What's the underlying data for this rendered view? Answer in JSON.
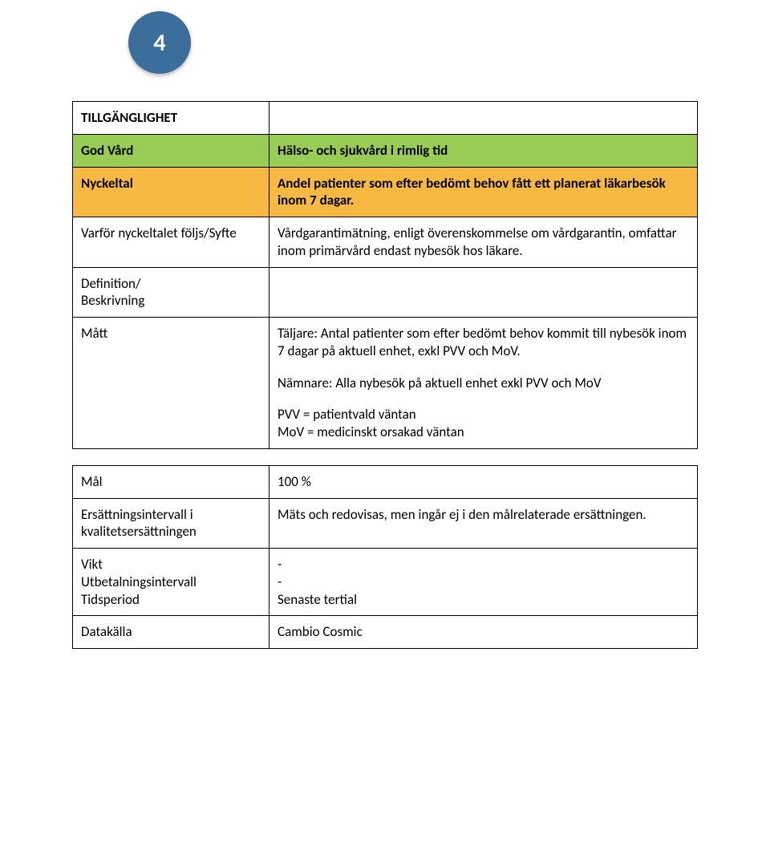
{
  "colors": {
    "badge_bg": "#3b6e9a",
    "badge_text": "#ffffff",
    "row_green": "#99cc55",
    "row_orange": "#f7b942",
    "border": "#000000",
    "page_bg": "#ffffff",
    "text": "#000000"
  },
  "badge": {
    "number": "4"
  },
  "section_title": "TILLGÄNGLIGHET",
  "rows": {
    "god_vard": {
      "label": "God Vård",
      "value": "Hälso- och sjukvård i rimlig tid"
    },
    "nyckeltal": {
      "label": "Nyckeltal",
      "value": "Andel patienter som efter bedömt behov fått ett planerat läkarbesök inom 7 dagar."
    },
    "varfor": {
      "label": "Varför nyckeltalet följs/Syfte",
      "value": "Vårdgarantimätning, enligt överenskommelse om vårdgarantin, omfattar inom primärvård endast nybesök hos läkare."
    },
    "definition": {
      "label_line1": "Definition/",
      "label_line2": "Beskrivning",
      "value": ""
    },
    "matt": {
      "label": "Mått",
      "taljare": "Täljare: Antal patienter som efter bedömt behov kommit till nybesök inom 7 dagar på aktuell enhet, exkl PVV och MoV.",
      "namnare": "Nämnare: Alla nybesök på aktuell enhet exkl PVV och MoV",
      "pvv": "PVV = patientvald väntan",
      "mov": "MoV = medicinskt orsakad väntan"
    },
    "mal": {
      "label": "Mål",
      "value": "100 %"
    },
    "ersattning": {
      "label_line1": "Ersättningsintervall i",
      "label_line2": "kvalitetsersättningen",
      "value": "Mäts och redovisas, men ingår ej i den målrelaterade ersättningen."
    },
    "vikt": {
      "label_vikt": "Vikt",
      "label_utbet": "Utbetalningsintervall",
      "label_tid": "Tidsperiod",
      "val_vikt": "-",
      "val_utbet": "-",
      "val_tid": "Senaste tertial"
    },
    "datakalla": {
      "label": "Datakälla",
      "value": "Cambio Cosmic"
    }
  }
}
